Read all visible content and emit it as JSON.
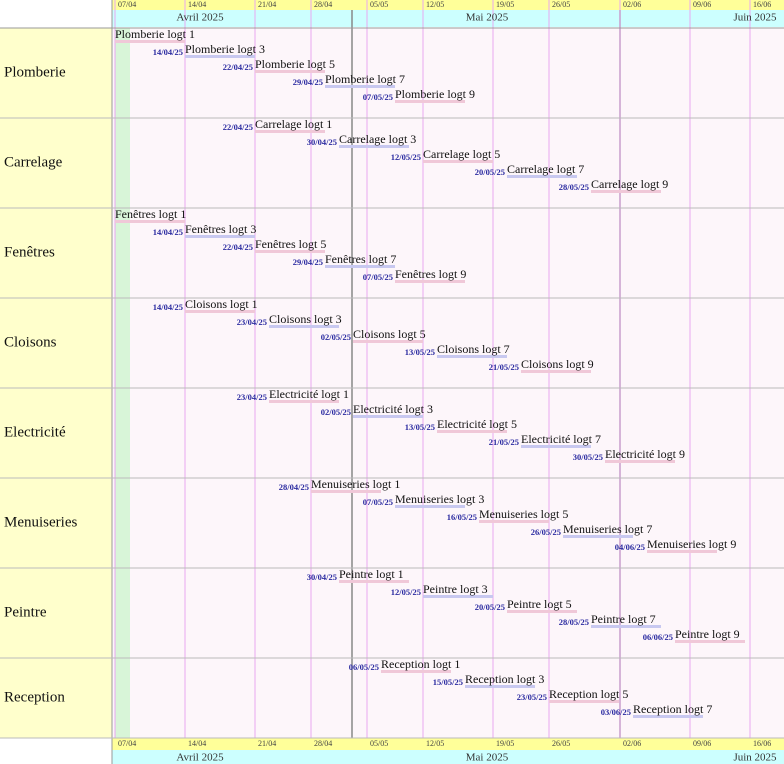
{
  "header": {
    "weeks": [
      "07/04",
      "14/04",
      "21/04",
      "28/04",
      "05/05",
      "12/05",
      "19/05",
      "26/05",
      "02/06",
      "09/06",
      "16/06"
    ],
    "months": [
      "Avril 2025",
      "Mai 2025",
      "Juin 2025"
    ]
  },
  "rows": [
    {
      "label": "Plomberie",
      "tasks": [
        {
          "name": "Plomberie logt 1"
        },
        {
          "name": "Plomberie logt 3",
          "date": "14/04/25"
        },
        {
          "name": "Plomberie logt 5",
          "date": "22/04/25"
        },
        {
          "name": "Plomberie logt 7",
          "date": "29/04/25"
        },
        {
          "name": "Plomberie logt 9",
          "date": "07/05/25"
        }
      ]
    },
    {
      "label": "Carrelage",
      "tasks": [
        {
          "name": "Carrelage logt 1",
          "date": "22/04/25"
        },
        {
          "name": "Carrelage logt 3",
          "date": "30/04/25"
        },
        {
          "name": "Carrelage logt 5",
          "date": "12/05/25"
        },
        {
          "name": "Carrelage logt 7",
          "date": "20/05/25"
        },
        {
          "name": "Carrelage logt 9",
          "date": "28/05/25"
        }
      ]
    },
    {
      "label": "Fenêtres",
      "tasks": [
        {
          "name": "Fenêtres logt 1"
        },
        {
          "name": "Fenêtres logt 3",
          "date": "14/04/25"
        },
        {
          "name": "Fenêtres logt 5",
          "date": "22/04/25"
        },
        {
          "name": "Fenêtres logt 7",
          "date": "29/04/25"
        },
        {
          "name": "Fenêtres logt 9",
          "date": "07/05/25"
        }
      ]
    },
    {
      "label": "Cloisons",
      "tasks": [
        {
          "name": "Cloisons logt 1",
          "date": "14/04/25"
        },
        {
          "name": "Cloisons logt 3",
          "date": "23/04/25"
        },
        {
          "name": "Cloisons logt 5",
          "date": "02/05/25"
        },
        {
          "name": "Cloisons logt 7",
          "date": "13/05/25"
        },
        {
          "name": "Cloisons logt 9",
          "date": "21/05/25"
        }
      ]
    },
    {
      "label": "Electricité",
      "tasks": [
        {
          "name": "Electricité logt 1",
          "date": "23/04/25"
        },
        {
          "name": "Electricité logt 3",
          "date": "02/05/25"
        },
        {
          "name": "Electricité logt 5",
          "date": "13/05/25"
        },
        {
          "name": "Electricité logt 7",
          "date": "21/05/25"
        },
        {
          "name": "Electricité logt 9",
          "date": "30/05/25"
        }
      ]
    },
    {
      "label": "Menuiseries",
      "tasks": [
        {
          "name": "Menuiseries logt 1",
          "date": "28/04/25"
        },
        {
          "name": "Menuiseries logt 3",
          "date": "07/05/25"
        },
        {
          "name": "Menuiseries logt 5",
          "date": "16/05/25"
        },
        {
          "name": "Menuiseries logt 7",
          "date": "26/05/25"
        },
        {
          "name": "Menuiseries logt 9",
          "date": "04/06/25"
        }
      ]
    },
    {
      "label": "Peintre",
      "tasks": [
        {
          "name": "Peintre logt 1",
          "date": "30/04/25"
        },
        {
          "name": "Peintre logt 3",
          "date": "12/05/25"
        },
        {
          "name": "Peintre logt 5",
          "date": "20/05/25"
        },
        {
          "name": "Peintre logt 7",
          "date": "28/05/25"
        },
        {
          "name": "Peintre logt 9",
          "date": "06/06/25"
        }
      ]
    },
    {
      "label": "Reception",
      "tasks": [
        {
          "name": "Reception logt 1",
          "date": "06/05/25"
        },
        {
          "name": "Reception logt 3",
          "date": "15/05/25"
        },
        {
          "name": "Reception logt 5",
          "date": "23/05/25"
        },
        {
          "name": "Reception logt 7",
          "date": "03/06/25"
        }
      ]
    }
  ]
}
